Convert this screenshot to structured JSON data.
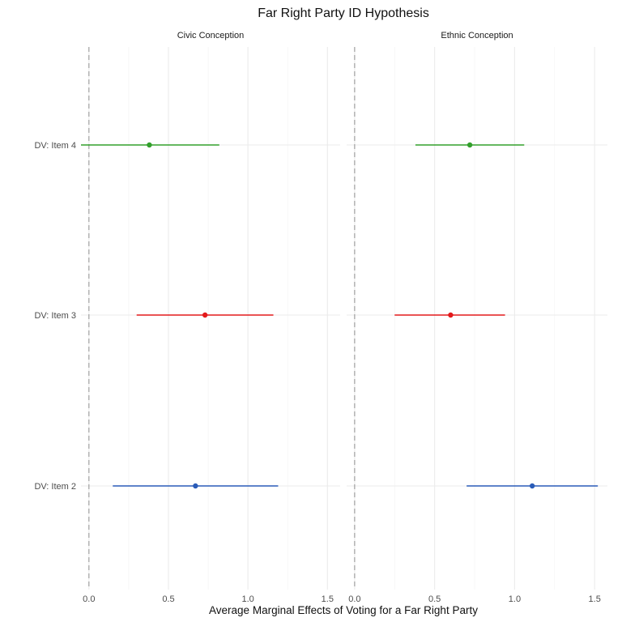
{
  "chart_data": {
    "type": "forest",
    "title": "Far Right Party ID Hypothesis",
    "xlabel": "Average Marginal Effects of Voting for a Far Right Party",
    "ylabel": "",
    "xlim": [
      -0.05,
      1.58
    ],
    "x_ticks": [
      0.0,
      0.5,
      1.0,
      1.5
    ],
    "x_tick_labels": [
      "0.0",
      "0.5",
      "1.0",
      "1.5"
    ],
    "reference_line": 0,
    "grid": true,
    "categories": [
      "DV: Item 4",
      "DV: Item 3",
      "DV: Item 2"
    ],
    "colors": {
      "DV: Item 4": "#33a02c",
      "DV: Item 3": "#e31a1c",
      "DV: Item 2": "#2a5cb8"
    },
    "panels": [
      {
        "name": "Civic Conception",
        "points": [
          {
            "category": "DV: Item 4",
            "estimate": 0.38,
            "low": -0.05,
            "high": 0.82
          },
          {
            "category": "DV: Item 3",
            "estimate": 0.73,
            "low": 0.3,
            "high": 1.16
          },
          {
            "category": "DV: Item 2",
            "estimate": 0.67,
            "low": 0.15,
            "high": 1.19
          }
        ]
      },
      {
        "name": "Ethnic Conception",
        "points": [
          {
            "category": "DV: Item 4",
            "estimate": 0.72,
            "low": 0.38,
            "high": 1.06
          },
          {
            "category": "DV: Item 3",
            "estimate": 0.6,
            "low": 0.25,
            "high": 0.94
          },
          {
            "category": "DV: Item 2",
            "estimate": 1.11,
            "low": 0.7,
            "high": 1.52
          }
        ]
      }
    ]
  }
}
